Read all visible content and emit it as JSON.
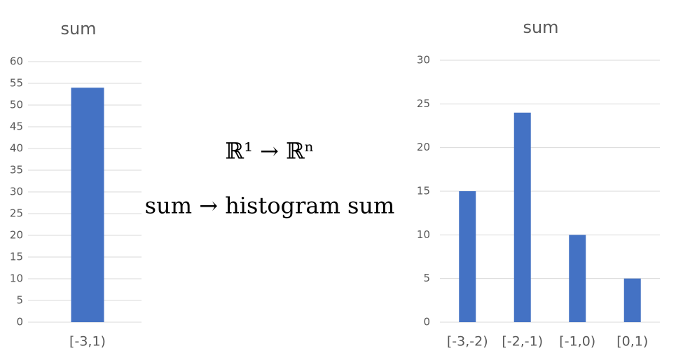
{
  "chart_data": [
    {
      "type": "bar",
      "title": "sum",
      "categories": [
        "[-3,1)"
      ],
      "values": [
        54
      ],
      "color": "#4472c4",
      "ylim": [
        0,
        60
      ],
      "yticks": [
        0,
        5,
        10,
        15,
        20,
        25,
        30,
        35,
        40,
        45,
        50,
        55,
        60
      ],
      "grid": true
    },
    {
      "type": "bar",
      "title": "sum",
      "categories": [
        "[-3,-2)",
        "[-2,-1)",
        "[-1,0)",
        "[0,1)"
      ],
      "values": [
        15,
        24,
        10,
        5
      ],
      "color": "#4472c4",
      "ylim": [
        0,
        30
      ],
      "yticks": [
        0,
        5,
        10,
        15,
        20,
        25,
        30
      ],
      "grid": true
    }
  ],
  "caption": {
    "line1": "ℝ¹ → ℝⁿ",
    "line2": "sum → histogram sum"
  }
}
